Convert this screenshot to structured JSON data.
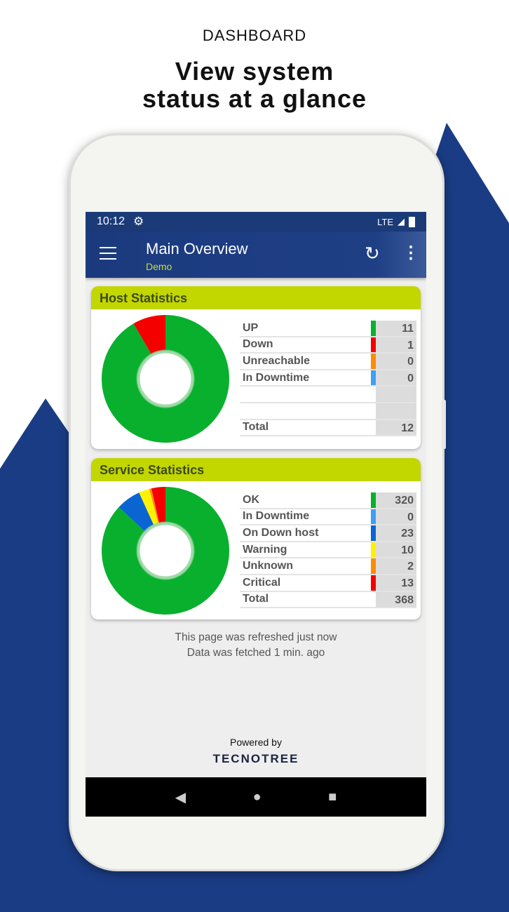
{
  "promo": {
    "kicker": "DASHBOARD",
    "headline_line1": "View system",
    "headline_line2": "status at a glance"
  },
  "colors": {
    "background_shape": "#1a3c84",
    "appbar": "#1b3a7e",
    "card_header": "#c2d600"
  },
  "status_bar": {
    "time": "10:12",
    "network": "LTE",
    "icons": [
      "gear-icon",
      "signal-icon",
      "battery-charging-icon"
    ]
  },
  "app_bar": {
    "title": "Main Overview",
    "subtitle": "Demo",
    "icons": [
      "menu-icon",
      "refresh-icon",
      "more-vert-icon"
    ]
  },
  "host_stats": {
    "title": "Host Statistics",
    "rows": [
      {
        "label": "UP",
        "value": "11",
        "color": "#08b02e"
      },
      {
        "label": "Down",
        "value": "1",
        "color": "#f40000"
      },
      {
        "label": "Unreachable",
        "value": "0",
        "color": "#ff8c00"
      },
      {
        "label": "In Downtime",
        "value": "0",
        "color": "#3ea0f5"
      },
      {
        "label": "",
        "value": "",
        "color": ""
      },
      {
        "label": "",
        "value": "",
        "color": ""
      }
    ],
    "total_label": "Total",
    "total_value": "12"
  },
  "service_stats": {
    "title": "Service Statistics",
    "rows": [
      {
        "label": "OK",
        "value": "320",
        "color": "#08b02e"
      },
      {
        "label": "In Downtime",
        "value": "0",
        "color": "#3ea0f5"
      },
      {
        "label": "On Down host",
        "value": "23",
        "color": "#0a64d2"
      },
      {
        "label": "Warning",
        "value": "10",
        "color": "#fff200"
      },
      {
        "label": "Unknown",
        "value": "2",
        "color": "#ff8c00"
      },
      {
        "label": "Critical",
        "value": "13",
        "color": "#f40000"
      }
    ],
    "total_label": "Total",
    "total_value": "368"
  },
  "chart_data": [
    {
      "type": "pie",
      "donut": true,
      "categories": [
        "UP",
        "Down",
        "Unreachable",
        "In Downtime"
      ],
      "values": [
        11,
        1,
        0,
        0
      ],
      "colors": [
        "#08b02e",
        "#f40000",
        "#ff8c00",
        "#3ea0f5"
      ]
    },
    {
      "type": "pie",
      "donut": true,
      "categories": [
        "OK",
        "On Down host",
        "Warning",
        "Unknown",
        "Critical",
        "In Downtime"
      ],
      "values": [
        320,
        23,
        10,
        2,
        13,
        0
      ],
      "colors": [
        "#08b02e",
        "#0a64d2",
        "#fff200",
        "#ff8c00",
        "#f40000",
        "#3ea0f5"
      ]
    }
  ],
  "footer": {
    "refreshed": "This page was refreshed just now",
    "fetched": "Data was fetched 1 min. ago",
    "powered_by": "Powered by",
    "brand": "TECNOTREE"
  }
}
